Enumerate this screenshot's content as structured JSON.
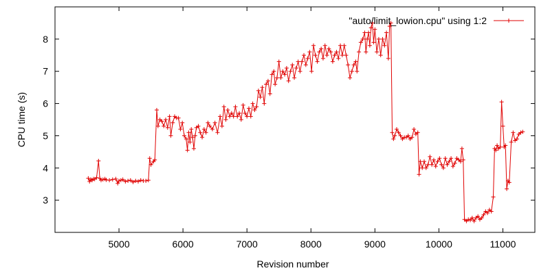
{
  "chart_data": {
    "type": "line",
    "xlabel": "Revision number",
    "ylabel": "CPU time (s)",
    "xlim": [
      4000,
      11500
    ],
    "ylim": [
      2,
      9
    ],
    "x_ticks": [
      5000,
      6000,
      7000,
      8000,
      9000,
      10000,
      11000
    ],
    "y_ticks": [
      3,
      4,
      5,
      6,
      7,
      8
    ],
    "grid": false,
    "legend_position": "top-right",
    "series": [
      {
        "name": "\"auto/limit_lowion.cpu\" using 1:2",
        "color": "#e00000",
        "marker": "plus",
        "points": [
          [
            4520,
            3.68
          ],
          [
            4540,
            3.58
          ],
          [
            4560,
            3.64
          ],
          [
            4580,
            3.62
          ],
          [
            4600,
            3.66
          ],
          [
            4620,
            3.65
          ],
          [
            4650,
            3.7
          ],
          [
            4680,
            4.22
          ],
          [
            4700,
            3.68
          ],
          [
            4720,
            3.62
          ],
          [
            4750,
            3.64
          ],
          [
            4780,
            3.66
          ],
          [
            4800,
            3.63
          ],
          [
            4850,
            3.62
          ],
          [
            4900,
            3.64
          ],
          [
            4950,
            3.66
          ],
          [
            4980,
            3.52
          ],
          [
            5000,
            3.6
          ],
          [
            5030,
            3.62
          ],
          [
            5060,
            3.64
          ],
          [
            5100,
            3.58
          ],
          [
            5140,
            3.6
          ],
          [
            5180,
            3.62
          ],
          [
            5220,
            3.56
          ],
          [
            5260,
            3.6
          ],
          [
            5300,
            3.58
          ],
          [
            5340,
            3.62
          ],
          [
            5380,
            3.6
          ],
          [
            5420,
            3.6
          ],
          [
            5460,
            3.62
          ],
          [
            5480,
            4.3
          ],
          [
            5500,
            4.1
          ],
          [
            5540,
            4.2
          ],
          [
            5560,
            4.25
          ],
          [
            5590,
            5.8
          ],
          [
            5610,
            5.3
          ],
          [
            5640,
            5.5
          ],
          [
            5670,
            5.45
          ],
          [
            5700,
            5.3
          ],
          [
            5730,
            5.5
          ],
          [
            5760,
            5.25
          ],
          [
            5790,
            5.6
          ],
          [
            5810,
            5.0
          ],
          [
            5840,
            5.4
          ],
          [
            5870,
            5.6
          ],
          [
            5900,
            5.55
          ],
          [
            5930,
            5.55
          ],
          [
            5960,
            5.2
          ],
          [
            5990,
            5.4
          ],
          [
            6020,
            5.0
          ],
          [
            6050,
            4.9
          ],
          [
            6070,
            4.55
          ],
          [
            6090,
            5.1
          ],
          [
            6110,
            4.8
          ],
          [
            6130,
            5.2
          ],
          [
            6150,
            4.95
          ],
          [
            6170,
            4.6
          ],
          [
            6190,
            5.0
          ],
          [
            6210,
            5.25
          ],
          [
            6240,
            5.3
          ],
          [
            6270,
            5.1
          ],
          [
            6300,
            4.95
          ],
          [
            6330,
            5.2
          ],
          [
            6360,
            5.1
          ],
          [
            6390,
            5.4
          ],
          [
            6420,
            5.3
          ],
          [
            6460,
            5.2
          ],
          [
            6500,
            5.4
          ],
          [
            6540,
            5.1
          ],
          [
            6580,
            5.6
          ],
          [
            6610,
            5.3
          ],
          [
            6640,
            5.9
          ],
          [
            6670,
            5.5
          ],
          [
            6700,
            5.8
          ],
          [
            6730,
            5.6
          ],
          [
            6760,
            5.7
          ],
          [
            6790,
            5.6
          ],
          [
            6820,
            5.9
          ],
          [
            6850,
            5.6
          ],
          [
            6880,
            5.7
          ],
          [
            6910,
            5.5
          ],
          [
            6940,
            5.95
          ],
          [
            6970,
            5.7
          ],
          [
            7000,
            5.6
          ],
          [
            7030,
            5.85
          ],
          [
            7060,
            5.6
          ],
          [
            7090,
            6.0
          ],
          [
            7120,
            5.8
          ],
          [
            7150,
            5.9
          ],
          [
            7180,
            6.4
          ],
          [
            7210,
            6.2
          ],
          [
            7240,
            6.5
          ],
          [
            7270,
            6.0
          ],
          [
            7300,
            6.6
          ],
          [
            7330,
            6.7
          ],
          [
            7360,
            6.3
          ],
          [
            7390,
            6.9
          ],
          [
            7420,
            7.0
          ],
          [
            7440,
            6.6
          ],
          [
            7470,
            6.8
          ],
          [
            7500,
            7.3
          ],
          [
            7530,
            6.8
          ],
          [
            7560,
            7.0
          ],
          [
            7590,
            6.9
          ],
          [
            7620,
            7.1
          ],
          [
            7650,
            6.7
          ],
          [
            7680,
            7.0
          ],
          [
            7710,
            7.2
          ],
          [
            7740,
            6.8
          ],
          [
            7770,
            7.1
          ],
          [
            7800,
            7.3
          ],
          [
            7830,
            7.0
          ],
          [
            7860,
            7.3
          ],
          [
            7890,
            7.5
          ],
          [
            7920,
            7.2
          ],
          [
            7950,
            7.4
          ],
          [
            7980,
            7.6
          ],
          [
            8010,
            7.0
          ],
          [
            8040,
            7.8
          ],
          [
            8070,
            7.5
          ],
          [
            8100,
            7.3
          ],
          [
            8130,
            7.6
          ],
          [
            8160,
            7.7
          ],
          [
            8190,
            7.4
          ],
          [
            8220,
            7.8
          ],
          [
            8250,
            7.5
          ],
          [
            8280,
            7.7
          ],
          [
            8310,
            7.6
          ],
          [
            8340,
            7.3
          ],
          [
            8370,
            7.5
          ],
          [
            8400,
            7.6
          ],
          [
            8430,
            7.4
          ],
          [
            8460,
            7.8
          ],
          [
            8490,
            7.5
          ],
          [
            8520,
            7.8
          ],
          [
            8550,
            7.5
          ],
          [
            8580,
            7.2
          ],
          [
            8610,
            6.8
          ],
          [
            8640,
            7.0
          ],
          [
            8670,
            7.2
          ],
          [
            8700,
            7.3
          ],
          [
            8720,
            7.0
          ],
          [
            8750,
            7.6
          ],
          [
            8780,
            7.9
          ],
          [
            8810,
            8.0
          ],
          [
            8840,
            8.2
          ],
          [
            8860,
            7.6
          ],
          [
            8880,
            8.0
          ],
          [
            8900,
            8.2
          ],
          [
            8920,
            7.8
          ],
          [
            8940,
            8.35
          ],
          [
            8960,
            8.5
          ],
          [
            8980,
            7.9
          ],
          [
            9000,
            8.3
          ],
          [
            9030,
            7.6
          ],
          [
            9060,
            8.0
          ],
          [
            9090,
            7.5
          ],
          [
            9120,
            8.0
          ],
          [
            9150,
            7.8
          ],
          [
            9180,
            8.2
          ],
          [
            9210,
            7.4
          ],
          [
            9230,
            8.4
          ],
          [
            9250,
            8.5
          ],
          [
            9270,
            5.1
          ],
          [
            9290,
            4.9
          ],
          [
            9310,
            5.0
          ],
          [
            9340,
            5.2
          ],
          [
            9370,
            5.1
          ],
          [
            9400,
            5.0
          ],
          [
            9430,
            4.9
          ],
          [
            9460,
            4.95
          ],
          [
            9490,
            4.95
          ],
          [
            9520,
            5.0
          ],
          [
            9550,
            4.9
          ],
          [
            9580,
            4.95
          ],
          [
            9610,
            5.2
          ],
          [
            9640,
            5.05
          ],
          [
            9670,
            5.1
          ],
          [
            9690,
            3.8
          ],
          [
            9710,
            4.2
          ],
          [
            9740,
            4.0
          ],
          [
            9770,
            4.2
          ],
          [
            9800,
            4.0
          ],
          [
            9830,
            4.1
          ],
          [
            9860,
            4.35
          ],
          [
            9890,
            4.1
          ],
          [
            9920,
            4.25
          ],
          [
            9950,
            4.05
          ],
          [
            9980,
            4.2
          ],
          [
            10010,
            4.3
          ],
          [
            10040,
            4.1
          ],
          [
            10070,
            4.0
          ],
          [
            10100,
            4.3
          ],
          [
            10130,
            4.1
          ],
          [
            10160,
            4.2
          ],
          [
            10190,
            4.3
          ],
          [
            10220,
            4.05
          ],
          [
            10250,
            4.15
          ],
          [
            10280,
            4.3
          ],
          [
            10310,
            4.25
          ],
          [
            10340,
            4.2
          ],
          [
            10360,
            4.6
          ],
          [
            10380,
            4.25
          ],
          [
            10400,
            2.4
          ],
          [
            10430,
            2.35
          ],
          [
            10460,
            2.4
          ],
          [
            10490,
            2.38
          ],
          [
            10520,
            2.45
          ],
          [
            10550,
            2.35
          ],
          [
            10580,
            2.45
          ],
          [
            10610,
            2.5
          ],
          [
            10640,
            2.4
          ],
          [
            10670,
            2.45
          ],
          [
            10700,
            2.55
          ],
          [
            10730,
            2.65
          ],
          [
            10760,
            2.6
          ],
          [
            10790,
            2.7
          ],
          [
            10820,
            2.65
          ],
          [
            10850,
            3.1
          ],
          [
            10870,
            4.6
          ],
          [
            10890,
            4.55
          ],
          [
            10910,
            4.7
          ],
          [
            10930,
            4.6
          ],
          [
            10960,
            4.65
          ],
          [
            10980,
            6.05
          ],
          [
            11000,
            5.3
          ],
          [
            11020,
            4.65
          ],
          [
            11040,
            4.7
          ],
          [
            11060,
            3.35
          ],
          [
            11080,
            3.6
          ],
          [
            11100,
            3.55
          ],
          [
            11130,
            4.8
          ],
          [
            11160,
            5.1
          ],
          [
            11190,
            4.85
          ],
          [
            11220,
            4.9
          ],
          [
            11250,
            5.05
          ],
          [
            11280,
            5.1
          ],
          [
            11310,
            5.12
          ]
        ]
      }
    ]
  }
}
